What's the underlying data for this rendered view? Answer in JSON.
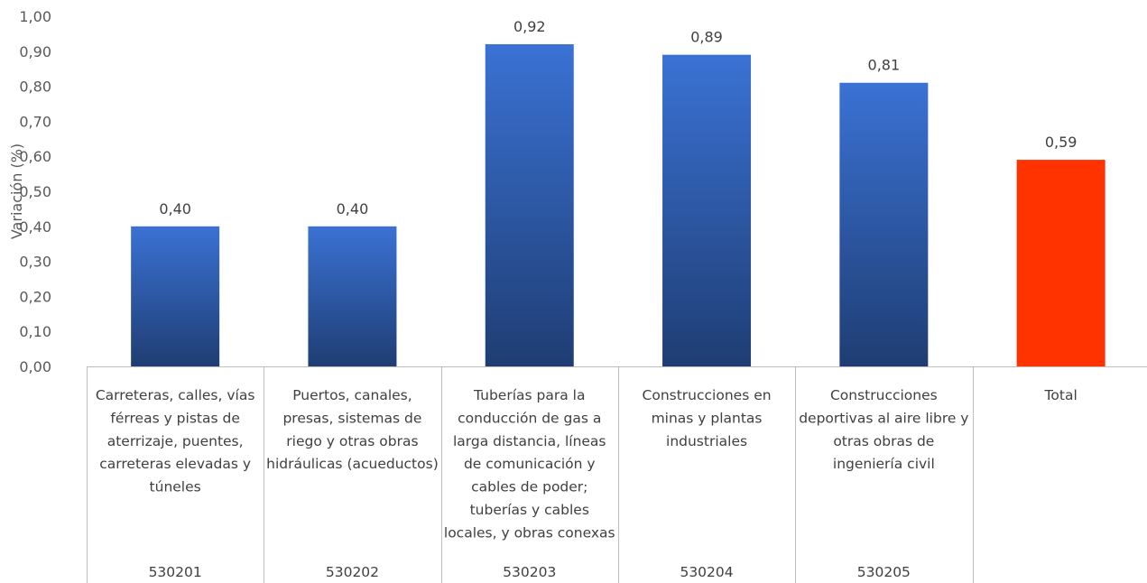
{
  "chart_data": {
    "type": "bar",
    "ylabel": "Variación (%)",
    "ylim": [
      0,
      1.0
    ],
    "yticks": [
      "0,00",
      "0,10",
      "0,20",
      "0,30",
      "0,40",
      "0,50",
      "0,60",
      "0,70",
      "0,80",
      "0,90",
      "1,00"
    ],
    "grid": false,
    "legend": "none",
    "categories": [
      {
        "label_lines": [
          "Carreteras, calles, vías",
          "férreas y pistas de",
          "aterrizaje, puentes,",
          "carreteras elevadas y",
          "túneles"
        ],
        "code": "530201"
      },
      {
        "label_lines": [
          "Puertos, canales,",
          "presas, sistemas de",
          "riego y otras obras",
          "hidráulicas (acueductos)"
        ],
        "code": "530202"
      },
      {
        "label_lines": [
          "Tuberías para la",
          "conducción de gas a",
          "larga distancia, líneas",
          "de comunicación y",
          "cables de poder;",
          "tuberías y cables",
          "locales, y obras conexas"
        ],
        "code": "530203"
      },
      {
        "label_lines": [
          "Construcciones  en",
          "minas y plantas",
          "industriales"
        ],
        "code": "530204"
      },
      {
        "label_lines": [
          "Construcciones",
          "deportivas al aire libre y",
          "otras obras de",
          "ingeniería civil"
        ],
        "code": "530205"
      },
      {
        "label_lines": [
          "Total"
        ],
        "code": ""
      }
    ],
    "values": [
      0.4,
      0.4,
      0.92,
      0.89,
      0.81,
      0.59
    ],
    "data_labels": [
      "0,40",
      "0,40",
      "0,92",
      "0,89",
      "0,81",
      "0,59"
    ],
    "colors": {
      "bar_top": "#3a72d4",
      "bar_bottom": "#1f3d73",
      "total": "#ff3300"
    }
  }
}
